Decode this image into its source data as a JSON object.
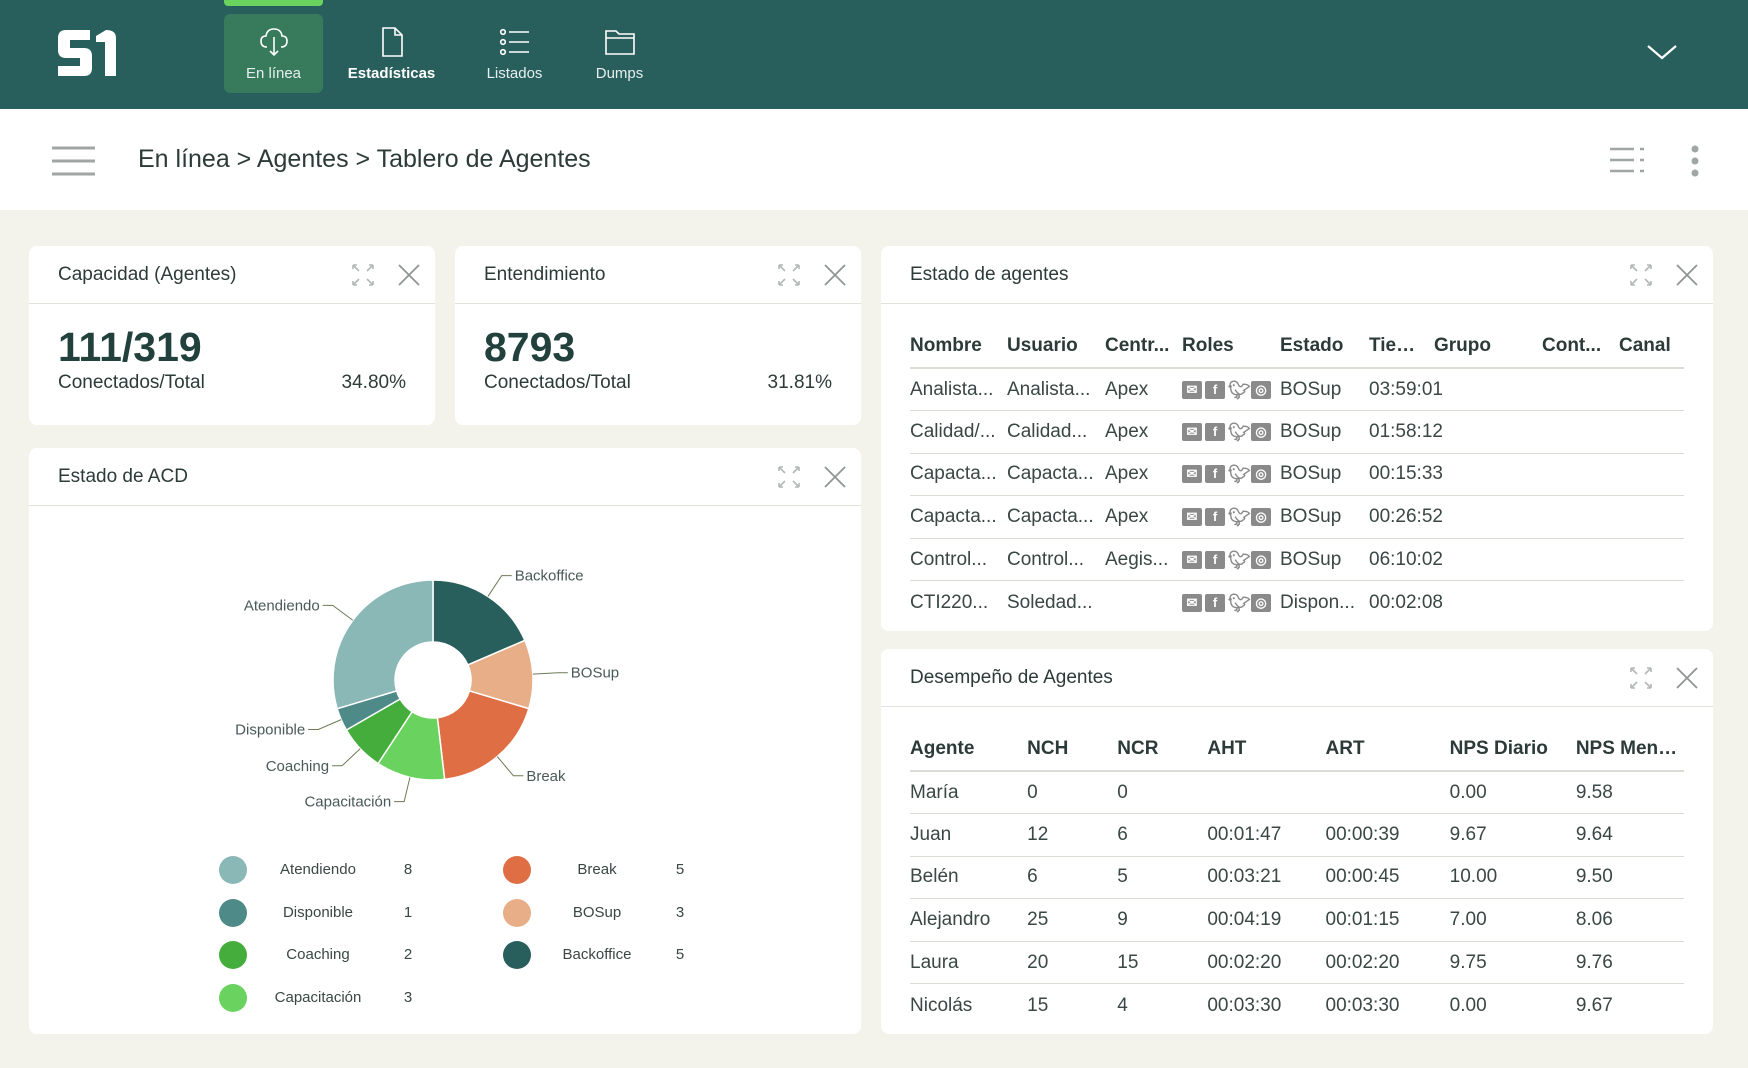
{
  "nav": {
    "tabs": [
      {
        "label": "En línea",
        "icon": "cloud-download-icon"
      },
      {
        "label": "Estadísticas",
        "icon": "file-icon"
      },
      {
        "label": "Listados",
        "icon": "list-icon"
      },
      {
        "label": "Dumps",
        "icon": "folder-icon"
      }
    ],
    "active": "En línea"
  },
  "breadcrumb": "En línea > Agentes > Tablero de Agentes",
  "colors": {
    "header": "#285e5c",
    "active_tab": "#387a5c",
    "indicator": "#6ad25e",
    "background": "#f3f3ec"
  },
  "capacidad": {
    "title": "Capacidad (Agentes)",
    "value": "111/319",
    "label": "Conectados/Total",
    "percent": "34.80%"
  },
  "entendimiento": {
    "title": "Entendimiento",
    "value": "8793",
    "label": "Conectados/Total",
    "percent": "31.81%"
  },
  "estado_agentes": {
    "title": "Estado de agentes",
    "columns": [
      "Nombre",
      "Usuario",
      "Centr...",
      "Roles",
      "Estado",
      "Tiempo",
      "Grupo",
      "Cont...",
      "Canal"
    ],
    "rows": [
      [
        "Analista...",
        "Analista...",
        "Apex",
        "",
        "BOSup",
        "03:59:01",
        "",
        "",
        ""
      ],
      [
        "Calidad/...",
        "Calidad...",
        "Apex",
        "",
        "BOSup",
        "01:58:12",
        "",
        "",
        ""
      ],
      [
        "Capacta...",
        "Capacta...",
        "Apex",
        "",
        "BOSup",
        "00:15:33",
        "",
        "",
        ""
      ],
      [
        "Capacta...",
        "Capacta...",
        "Apex",
        "",
        "BOSup",
        "00:26:52",
        "",
        "",
        ""
      ],
      [
        "Control...",
        "Control...",
        "Aegis...",
        "",
        "BOSup",
        "06:10:02",
        "",
        "",
        ""
      ],
      [
        "CTI220...",
        "Soledad...",
        "",
        "",
        "Dispon...",
        "00:02:08",
        "",
        "",
        ""
      ]
    ],
    "role_icons": [
      "mail-icon",
      "facebook-icon",
      "twitter-icon",
      "instagram-icon"
    ]
  },
  "desempeno": {
    "title": "Desempeño de Agentes",
    "columns": [
      "Agente",
      "NCH",
      "NCR",
      "AHT",
      "ART",
      "NPS Diario",
      "NPS Mens..."
    ],
    "rows": [
      [
        "María",
        "0",
        "0",
        "",
        "",
        "0.00",
        "9.58"
      ],
      [
        "Juan",
        "12",
        "6",
        "00:01:47",
        "00:00:39",
        "9.67",
        "9.64"
      ],
      [
        "Belén",
        "6",
        "5",
        "00:03:21",
        "00:00:45",
        "10.00",
        "9.50"
      ],
      [
        "Alejandro",
        "25",
        "9",
        "00:04:19",
        "00:01:15",
        "7.00",
        "8.06"
      ],
      [
        "Laura",
        "20",
        "15",
        "00:02:20",
        "00:02:20",
        "9.75",
        "9.76"
      ],
      [
        "Nicolás",
        "15",
        "4",
        "00:03:30",
        "00:03:30",
        "0.00",
        "9.67"
      ]
    ]
  },
  "acd": {
    "title": "Estado de ACD"
  },
  "chart_data": {
    "type": "pie",
    "donut": true,
    "slices": [
      {
        "label": "Backoffice",
        "value": 5,
        "color": "#285e5c"
      },
      {
        "label": "BOSup",
        "value": 3,
        "color": "#e8ae88"
      },
      {
        "label": "Break",
        "value": 5,
        "color": "#e06e45"
      },
      {
        "label": "Capacitación",
        "value": 3,
        "color": "#6ad25e"
      },
      {
        "label": "Coaching",
        "value": 2,
        "color": "#45ad3c"
      },
      {
        "label": "Disponible",
        "value": 1,
        "color": "#4e8a88"
      },
      {
        "label": "Atendiendo",
        "value": 8,
        "color": "#8ab8b7"
      }
    ],
    "legend": [
      {
        "label": "Atendiendo",
        "value": "8",
        "color": "#8ab8b7"
      },
      {
        "label": "Disponible",
        "value": "1",
        "color": "#4e8a88"
      },
      {
        "label": "Coaching",
        "value": "2",
        "color": "#45ad3c"
      },
      {
        "label": "Capacitación",
        "value": "3",
        "color": "#6ad25e"
      },
      {
        "label": "Break",
        "value": "5",
        "color": "#e06e45"
      },
      {
        "label": "BOSup",
        "value": "3",
        "color": "#e8ae88"
      },
      {
        "label": "Backoffice",
        "value": "5",
        "color": "#285e5c"
      }
    ],
    "legend_placement": "bottom"
  }
}
